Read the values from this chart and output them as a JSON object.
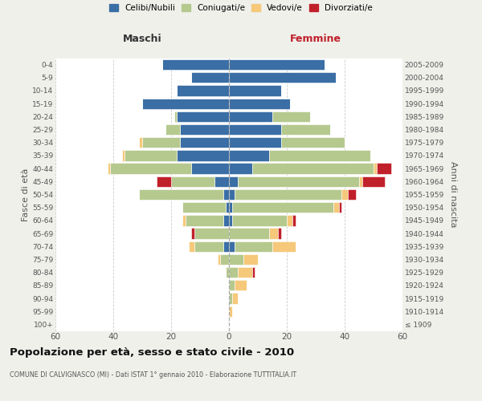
{
  "age_groups": [
    "100+",
    "95-99",
    "90-94",
    "85-89",
    "80-84",
    "75-79",
    "70-74",
    "65-69",
    "60-64",
    "55-59",
    "50-54",
    "45-49",
    "40-44",
    "35-39",
    "30-34",
    "25-29",
    "20-24",
    "15-19",
    "10-14",
    "5-9",
    "0-4"
  ],
  "birth_years": [
    "≤ 1909",
    "1910-1914",
    "1915-1919",
    "1920-1924",
    "1925-1929",
    "1930-1934",
    "1935-1939",
    "1940-1944",
    "1945-1949",
    "1950-1954",
    "1955-1959",
    "1960-1964",
    "1965-1969",
    "1970-1974",
    "1975-1979",
    "1980-1984",
    "1985-1989",
    "1990-1994",
    "1995-1999",
    "2000-2004",
    "2005-2009"
  ],
  "colors": {
    "celibe": "#3a6ea5",
    "coniugato": "#b5c98e",
    "vedovo": "#f5c87a",
    "divorziato": "#c0202a"
  },
  "males": {
    "celibe": [
      0,
      0,
      0,
      0,
      0,
      0,
      2,
      0,
      2,
      1,
      2,
      5,
      13,
      18,
      17,
      17,
      18,
      30,
      18,
      13,
      23
    ],
    "coniugato": [
      0,
      0,
      0,
      0,
      1,
      3,
      10,
      12,
      13,
      15,
      29,
      15,
      28,
      18,
      13,
      5,
      1,
      0,
      0,
      0,
      0
    ],
    "vedovo": [
      0,
      0,
      0,
      0,
      0,
      1,
      2,
      0,
      1,
      0,
      0,
      0,
      1,
      1,
      1,
      0,
      0,
      0,
      0,
      0,
      0
    ],
    "divorziato": [
      0,
      0,
      0,
      0,
      0,
      0,
      0,
      1,
      0,
      0,
      0,
      5,
      0,
      0,
      0,
      0,
      0,
      0,
      0,
      0,
      0
    ]
  },
  "females": {
    "nubile": [
      0,
      0,
      0,
      0,
      0,
      0,
      2,
      0,
      1,
      1,
      2,
      3,
      8,
      14,
      18,
      18,
      15,
      21,
      18,
      37,
      33
    ],
    "coniugata": [
      0,
      0,
      1,
      2,
      3,
      5,
      13,
      14,
      19,
      35,
      37,
      42,
      42,
      35,
      22,
      17,
      13,
      0,
      0,
      0,
      0
    ],
    "vedova": [
      0,
      1,
      2,
      4,
      5,
      5,
      8,
      3,
      2,
      2,
      2,
      1,
      1,
      0,
      0,
      0,
      0,
      0,
      0,
      0,
      0
    ],
    "divorziata": [
      0,
      0,
      0,
      0,
      1,
      0,
      0,
      1,
      1,
      1,
      3,
      8,
      5,
      0,
      0,
      0,
      0,
      0,
      0,
      0,
      0
    ]
  },
  "xlim": 60,
  "title": "Popolazione per età, sesso e stato civile - 2010",
  "subtitle": "COMUNE DI CALVIGNASCO (MI) - Dati ISTAT 1° gennaio 2010 - Elaborazione TUTTITALIA.IT",
  "xlabel_left": "Maschi",
  "xlabel_right": "Femmine",
  "ylabel_left": "Fasce di età",
  "ylabel_right": "Anni di nascita",
  "legend_labels": [
    "Celibi/Nubili",
    "Coniugati/e",
    "Vedovi/e",
    "Divorziati/e"
  ],
  "bg_color": "#f0f0eb",
  "plot_bg": "#ffffff",
  "grid_color": "#cccccc"
}
